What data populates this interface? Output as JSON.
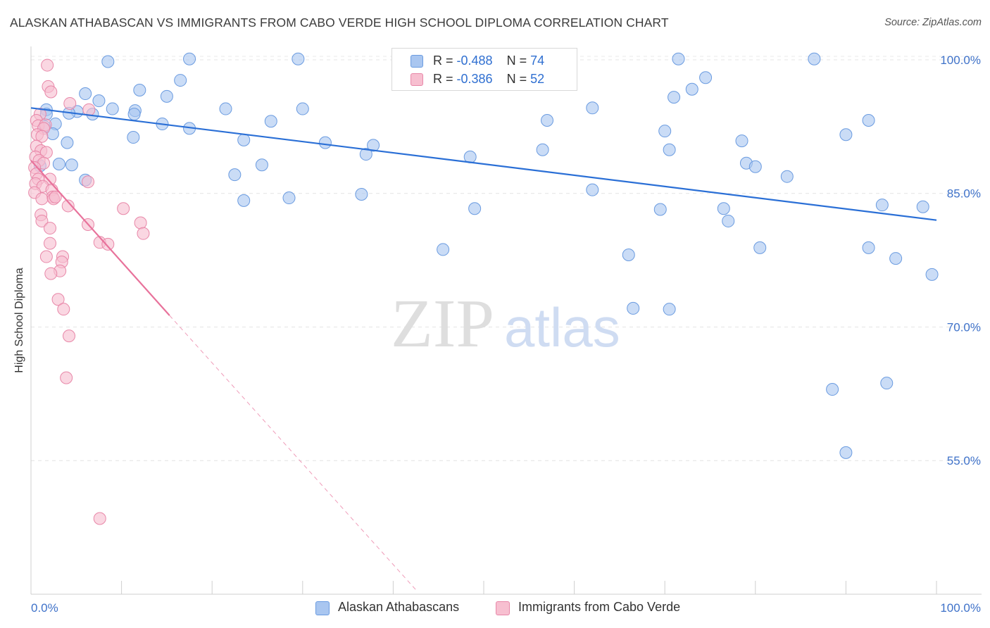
{
  "title": "ALASKAN ATHABASCAN VS IMMIGRANTS FROM CABO VERDE HIGH SCHOOL DIPLOMA CORRELATION CHART",
  "source": "Source: ZipAtlas.com",
  "watermark": {
    "zip": "ZIP",
    "atlas": "atlas"
  },
  "legend": {
    "r_label": "R =",
    "n_label": "N =",
    "rows": [
      {
        "r": "-0.488",
        "n": "74",
        "color": "#a9c6f0",
        "border": "#6a9be0"
      },
      {
        "r": "-0.386",
        "n": "52",
        "color": "#f7bfd0",
        "border": "#e887a8"
      }
    ]
  },
  "chart_data": {
    "type": "scatter",
    "xlabel": "",
    "ylabel": "High School Diploma",
    "xlim": [
      0,
      100
    ],
    "ylim": [
      40,
      101.5
    ],
    "x_tick_labels": [
      "0.0%",
      "100.0%"
    ],
    "y_ticks": [
      55,
      70,
      85,
      100
    ],
    "y_tick_labels": [
      "55.0%",
      "70.0%",
      "85.0%",
      "100.0%"
    ],
    "grid": "horizontal-dashed",
    "legend_position": "bottom",
    "series": [
      {
        "name": "Alaskan Athabascans",
        "color": "#a9c6f0",
        "stroke": "#6a9be0",
        "trend": {
          "x0": 0,
          "y0": 94.6,
          "x1": 100,
          "y1": 82.0,
          "color": "#2a6fd6"
        },
        "points": [
          [
            8.5,
            99.8
          ],
          [
            17.5,
            100.1
          ],
          [
            29.5,
            100.1
          ],
          [
            71.5,
            100.1
          ],
          [
            86.5,
            100.1
          ],
          [
            16.5,
            97.7
          ],
          [
            74.5,
            98.0
          ],
          [
            12,
            96.6
          ],
          [
            6,
            96.2
          ],
          [
            15,
            95.9
          ],
          [
            7.5,
            95.4
          ],
          [
            71,
            95.8
          ],
          [
            73,
            96.7
          ],
          [
            1.7,
            94.4
          ],
          [
            5.1,
            94.2
          ],
          [
            11.5,
            94.3
          ],
          [
            21.5,
            94.5
          ],
          [
            30,
            94.5
          ],
          [
            9,
            94.5
          ],
          [
            1.7,
            93.9
          ],
          [
            6.8,
            93.9
          ],
          [
            11.4,
            93.9
          ],
          [
            4.2,
            94.0
          ],
          [
            62,
            94.6
          ],
          [
            2.7,
            92.8
          ],
          [
            14.5,
            92.8
          ],
          [
            26.5,
            93.1
          ],
          [
            17.5,
            92.3
          ],
          [
            57,
            93.2
          ],
          [
            92.5,
            93.2
          ],
          [
            1.5,
            92.5
          ],
          [
            2.4,
            91.7
          ],
          [
            70,
            92.0
          ],
          [
            90,
            91.6
          ],
          [
            11.3,
            91.3
          ],
          [
            23.5,
            91.0
          ],
          [
            4,
            90.7
          ],
          [
            32.5,
            90.7
          ],
          [
            37.8,
            90.4
          ],
          [
            70.5,
            89.9
          ],
          [
            78.5,
            90.9
          ],
          [
            37,
            89.4
          ],
          [
            56.5,
            89.9
          ],
          [
            48.5,
            89.1
          ],
          [
            4.5,
            88.2
          ],
          [
            3.1,
            88.3
          ],
          [
            25.5,
            88.2
          ],
          [
            1,
            88.1
          ],
          [
            79,
            88.4
          ],
          [
            80,
            88.0
          ],
          [
            22.5,
            87.1
          ],
          [
            83.5,
            86.9
          ],
          [
            28.5,
            84.5
          ],
          [
            23.5,
            84.2
          ],
          [
            6,
            86.5
          ],
          [
            36.5,
            84.9
          ],
          [
            62,
            85.4
          ],
          [
            49,
            83.3
          ],
          [
            69.5,
            83.2
          ],
          [
            76.5,
            83.3
          ],
          [
            94,
            83.7
          ],
          [
            98.5,
            83.5
          ],
          [
            77,
            81.9
          ],
          [
            45.5,
            78.7
          ],
          [
            66,
            78.1
          ],
          [
            80.5,
            78.9
          ],
          [
            92.5,
            78.9
          ],
          [
            95.5,
            77.7
          ],
          [
            66.5,
            72.1
          ],
          [
            70.5,
            72.0
          ],
          [
            94.5,
            63.7
          ],
          [
            88.5,
            63.0
          ],
          [
            90,
            55.9
          ],
          [
            99.5,
            75.9
          ]
        ]
      },
      {
        "name": "Immigrants from Cabo Verde",
        "color": "#f7bfd0",
        "stroke": "#e887a8",
        "trend": {
          "x0": 0,
          "y0": 88.7,
          "x1": 15.3,
          "y1": 71.3,
          "color": "#e8729b"
        },
        "trend_extension": {
          "x0": 15.3,
          "y0": 71.3,
          "x1": 42.5,
          "y1": 40.5
        },
        "points": [
          [
            1.8,
            99.4
          ],
          [
            1.9,
            97.0
          ],
          [
            2.2,
            96.4
          ],
          [
            4.3,
            95.1
          ],
          [
            6.4,
            94.4
          ],
          [
            1.0,
            93.9
          ],
          [
            0.6,
            93.2
          ],
          [
            0.8,
            92.6
          ],
          [
            1.6,
            92.7
          ],
          [
            1.4,
            92.3
          ],
          [
            0.7,
            91.6
          ],
          [
            1.2,
            91.4
          ],
          [
            0.6,
            90.3
          ],
          [
            1.1,
            89.8
          ],
          [
            1.7,
            89.6
          ],
          [
            0.5,
            89.1
          ],
          [
            0.9,
            88.7
          ],
          [
            1.4,
            88.4
          ],
          [
            0.4,
            87.9
          ],
          [
            0.6,
            87.2
          ],
          [
            0.8,
            86.6
          ],
          [
            2.1,
            86.6
          ],
          [
            6.3,
            86.3
          ],
          [
            0.5,
            86.1
          ],
          [
            1.3,
            85.8
          ],
          [
            0.4,
            85.1
          ],
          [
            2.3,
            85.4
          ],
          [
            2.4,
            84.6
          ],
          [
            2.5,
            84.4
          ],
          [
            1.2,
            84.4
          ],
          [
            2.7,
            84.6
          ],
          [
            4.1,
            83.6
          ],
          [
            10.2,
            83.3
          ],
          [
            1.1,
            82.6
          ],
          [
            1.2,
            81.9
          ],
          [
            6.3,
            81.5
          ],
          [
            12.1,
            81.7
          ],
          [
            2.1,
            81.1
          ],
          [
            12.4,
            80.5
          ],
          [
            7.6,
            79.5
          ],
          [
            8.5,
            79.3
          ],
          [
            2.1,
            79.4
          ],
          [
            1.7,
            77.9
          ],
          [
            3.5,
            77.9
          ],
          [
            3.4,
            77.3
          ],
          [
            3.2,
            76.3
          ],
          [
            2.2,
            76.0
          ],
          [
            3.0,
            73.1
          ],
          [
            3.6,
            72.0
          ],
          [
            4.2,
            69.0
          ],
          [
            3.9,
            64.3
          ],
          [
            7.6,
            48.5
          ]
        ]
      }
    ]
  }
}
